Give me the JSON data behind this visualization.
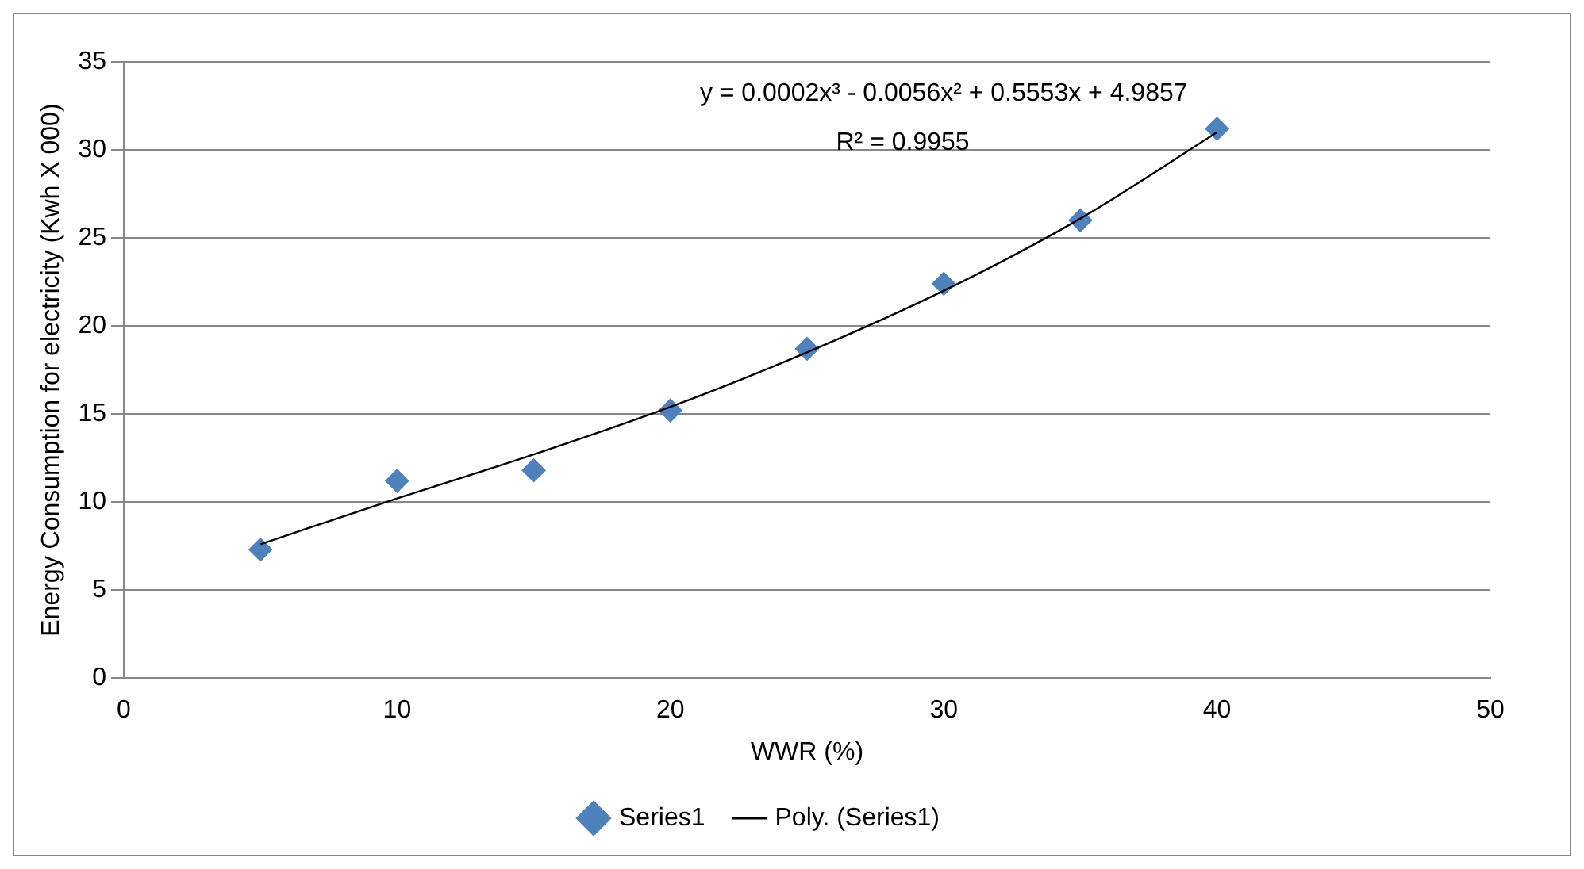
{
  "chart_data": {
    "type": "scatter",
    "xlabel": "WWR (%)",
    "ylabel": "Energy Consumption for electricity (Kwh X 000)",
    "xlim": [
      0,
      50
    ],
    "xticks": [
      0,
      10,
      20,
      30,
      40,
      50
    ],
    "ylim": [
      0,
      35
    ],
    "yticks": [
      0,
      5,
      10,
      15,
      20,
      25,
      30,
      35
    ],
    "grid": "y",
    "legend": "bottom",
    "marker": "diamond",
    "series": [
      {
        "name": "Series1",
        "color": "#4f81bd",
        "x": [
          5,
          10,
          15,
          20,
          25,
          30,
          35,
          40
        ],
        "values": [
          7.3,
          11.2,
          11.8,
          15.2,
          18.7,
          22.4,
          26.0,
          31.2
        ]
      },
      {
        "name": "Poly. (Series1)",
        "type": "line",
        "color": "#000000",
        "marker": "none",
        "x": [
          5,
          10,
          15,
          20,
          25,
          30,
          35,
          40
        ],
        "values": [
          7.6,
          10.2,
          12.7,
          15.4,
          18.5,
          22.0,
          26.1,
          31.0
        ]
      }
    ],
    "annotations": [
      "y = 0.0002x³ - 0.0056x² + 0.5553x + 4.9857",
      "R² = 0.9955"
    ]
  }
}
